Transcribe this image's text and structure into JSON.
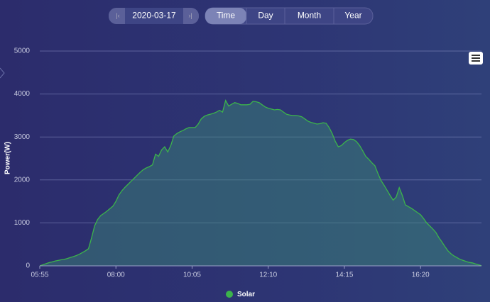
{
  "controls": {
    "date": "2020-03-17",
    "tabs": [
      "Time",
      "Day",
      "Month",
      "Year"
    ],
    "selected_tab": 0
  },
  "chart_data": {
    "type": "area",
    "y_label": "Power(W)",
    "categories": [
      "05:55",
      null,
      null,
      null,
      null,
      null,
      null,
      null,
      null,
      null,
      null,
      null,
      null,
      null,
      null,
      null,
      null,
      null,
      null,
      null,
      null,
      null,
      null,
      null,
      null,
      "08:00",
      null,
      null,
      null,
      null,
      null,
      null,
      null,
      null,
      null,
      null,
      null,
      null,
      null,
      null,
      null,
      null,
      null,
      null,
      null,
      null,
      null,
      null,
      null,
      null,
      "10:05",
      null,
      null,
      null,
      null,
      null,
      null,
      null,
      null,
      null,
      null,
      null,
      null,
      null,
      null,
      null,
      null,
      null,
      null,
      null,
      null,
      null,
      null,
      null,
      null,
      "12:10",
      null,
      null,
      null,
      null,
      null,
      null,
      null,
      null,
      null,
      null,
      null,
      null,
      null,
      null,
      null,
      null,
      null,
      null,
      null,
      null,
      null,
      null,
      null,
      null,
      "14:15",
      null,
      null,
      null,
      null,
      null,
      null,
      null,
      null,
      null,
      null,
      null,
      null,
      null,
      null,
      null,
      null,
      null,
      null,
      null,
      null,
      null,
      null,
      null,
      null,
      "16:20",
      null,
      null,
      null,
      null,
      null,
      null,
      null,
      null,
      null,
      null,
      null,
      null,
      null,
      null,
      null,
      null,
      null,
      null,
      null,
      null
    ],
    "series": [
      {
        "name": "Solar",
        "color": "#3cb44b",
        "values": [
          0,
          25,
          50,
          75,
          90,
          110,
          125,
          140,
          150,
          170,
          195,
          215,
          240,
          270,
          310,
          350,
          400,
          650,
          930,
          1080,
          1170,
          1220,
          1270,
          1330,
          1390,
          1500,
          1650,
          1750,
          1830,
          1900,
          1970,
          2040,
          2110,
          2180,
          2240,
          2280,
          2310,
          2350,
          2600,
          2550,
          2700,
          2770,
          2650,
          2800,
          3020,
          3080,
          3120,
          3150,
          3190,
          3220,
          3220,
          3220,
          3300,
          3420,
          3480,
          3510,
          3530,
          3550,
          3580,
          3620,
          3580,
          3850,
          3720,
          3760,
          3800,
          3780,
          3750,
          3750,
          3750,
          3760,
          3830,
          3820,
          3800,
          3750,
          3700,
          3670,
          3650,
          3630,
          3640,
          3630,
          3580,
          3530,
          3510,
          3500,
          3500,
          3490,
          3470,
          3420,
          3370,
          3340,
          3320,
          3300,
          3310,
          3330,
          3320,
          3220,
          3080,
          2900,
          2770,
          2800,
          2870,
          2920,
          2950,
          2940,
          2890,
          2800,
          2680,
          2550,
          2480,
          2400,
          2330,
          2150,
          1990,
          1880,
          1760,
          1640,
          1530,
          1600,
          1820,
          1640,
          1420,
          1380,
          1340,
          1290,
          1240,
          1190,
          1100,
          1000,
          930,
          860,
          780,
          660,
          560,
          450,
          350,
          280,
          230,
          190,
          150,
          125,
          100,
          80,
          70,
          45,
          25,
          5
        ]
      }
    ],
    "ylim": [
      0,
      5000
    ],
    "yticks": [
      0,
      1000,
      2000,
      3000,
      4000,
      5000
    ],
    "grid": true
  }
}
